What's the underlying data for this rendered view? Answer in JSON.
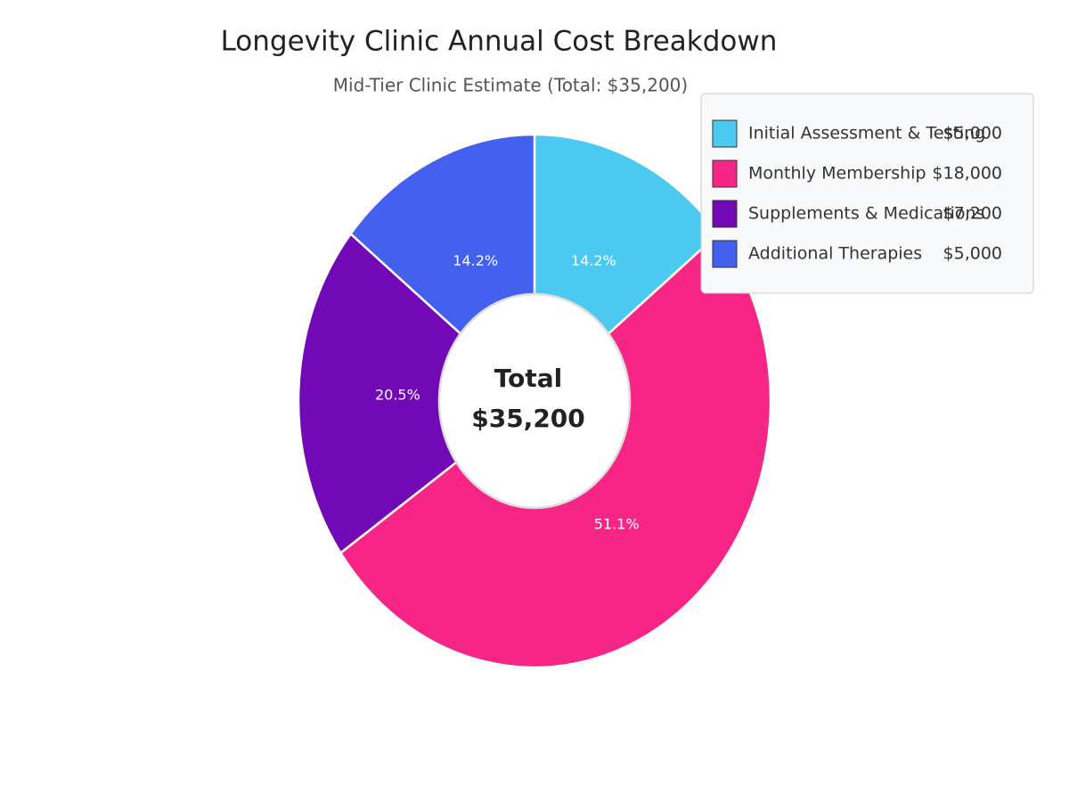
{
  "chart_data": {
    "type": "donut",
    "title": "Longevity Clinic Annual Cost Breakdown",
    "subtitle": "Mid-Tier Clinic Estimate (Total: $35,200)",
    "categories": [
      "Initial Assessment & Testing",
      "Monthly Membership",
      "Supplements & Medications",
      "Additional Therapies"
    ],
    "values": [
      5000,
      18000,
      7200,
      5000
    ],
    "value_labels": [
      "$5,000",
      "$18,000",
      "$7,200",
      "$5,000"
    ],
    "percent_labels": [
      "14.2%",
      "51.1%",
      "20.5%",
      "14.2%"
    ],
    "colors": [
      "#4CC9F0",
      "#F72585",
      "#7209B7",
      "#4361EE"
    ],
    "center_text": [
      "Total",
      "$35,200"
    ],
    "legend": "top-right"
  }
}
